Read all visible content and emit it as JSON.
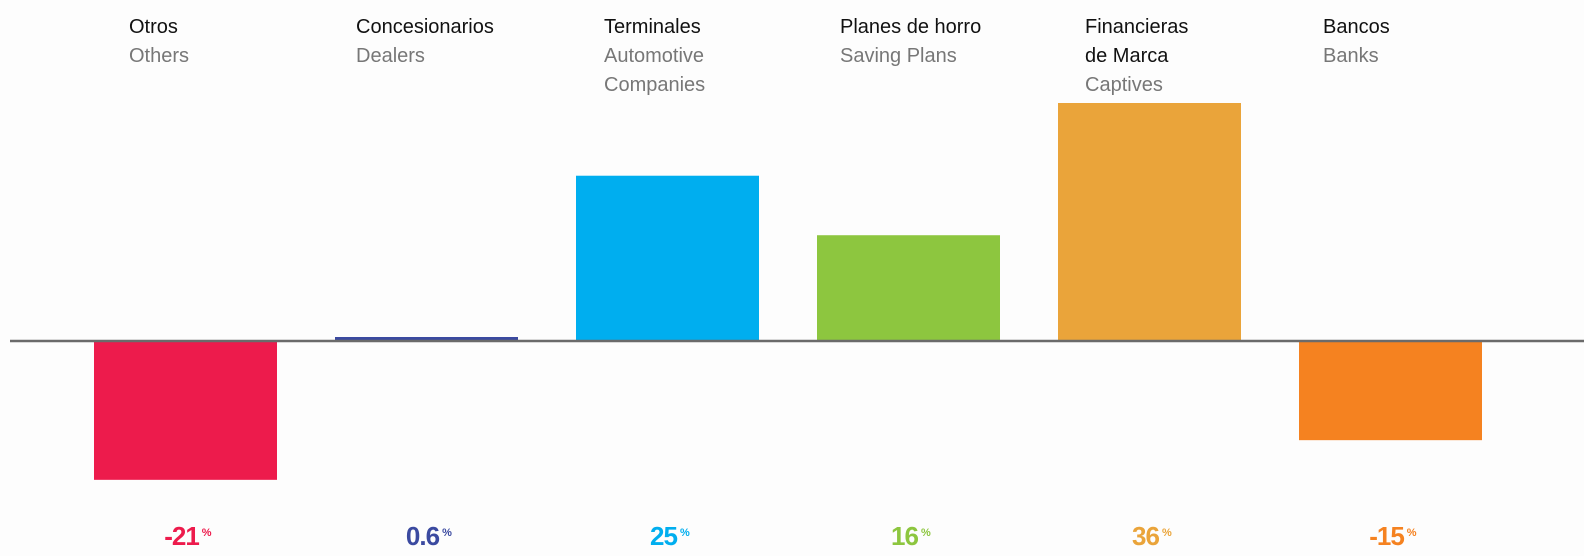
{
  "chart_data": {
    "type": "bar",
    "categories": [
      {
        "es": [
          "Otros"
        ],
        "en": [
          "Others"
        ]
      },
      {
        "es": [
          "Concesionarios"
        ],
        "en": [
          "Dealers"
        ]
      },
      {
        "es": [
          "Terminales"
        ],
        "en": [
          "Automotive",
          "Companies"
        ]
      },
      {
        "es": [
          "Planes de horro"
        ],
        "en": [
          "Saving Plans"
        ]
      },
      {
        "es": [
          "Financieras",
          "de Marca"
        ],
        "en": [
          "Captives"
        ]
      },
      {
        "es": [
          "Bancos"
        ],
        "en": [
          "Banks"
        ]
      }
    ],
    "values": [
      -21,
      0.6,
      25,
      16,
      36,
      -15
    ],
    "value_labels": [
      "-21",
      "0.6",
      "25",
      "16",
      "36",
      "-15"
    ],
    "unit": "%",
    "colors": [
      "#ed1b4c",
      "#3b4aa0",
      "#00aeef",
      "#8dc63f",
      "#eaa43a",
      "#f58220"
    ],
    "axis_color": "#6b6b6b",
    "ylim": [
      -30,
      40
    ],
    "grid": false,
    "legend": "none"
  }
}
